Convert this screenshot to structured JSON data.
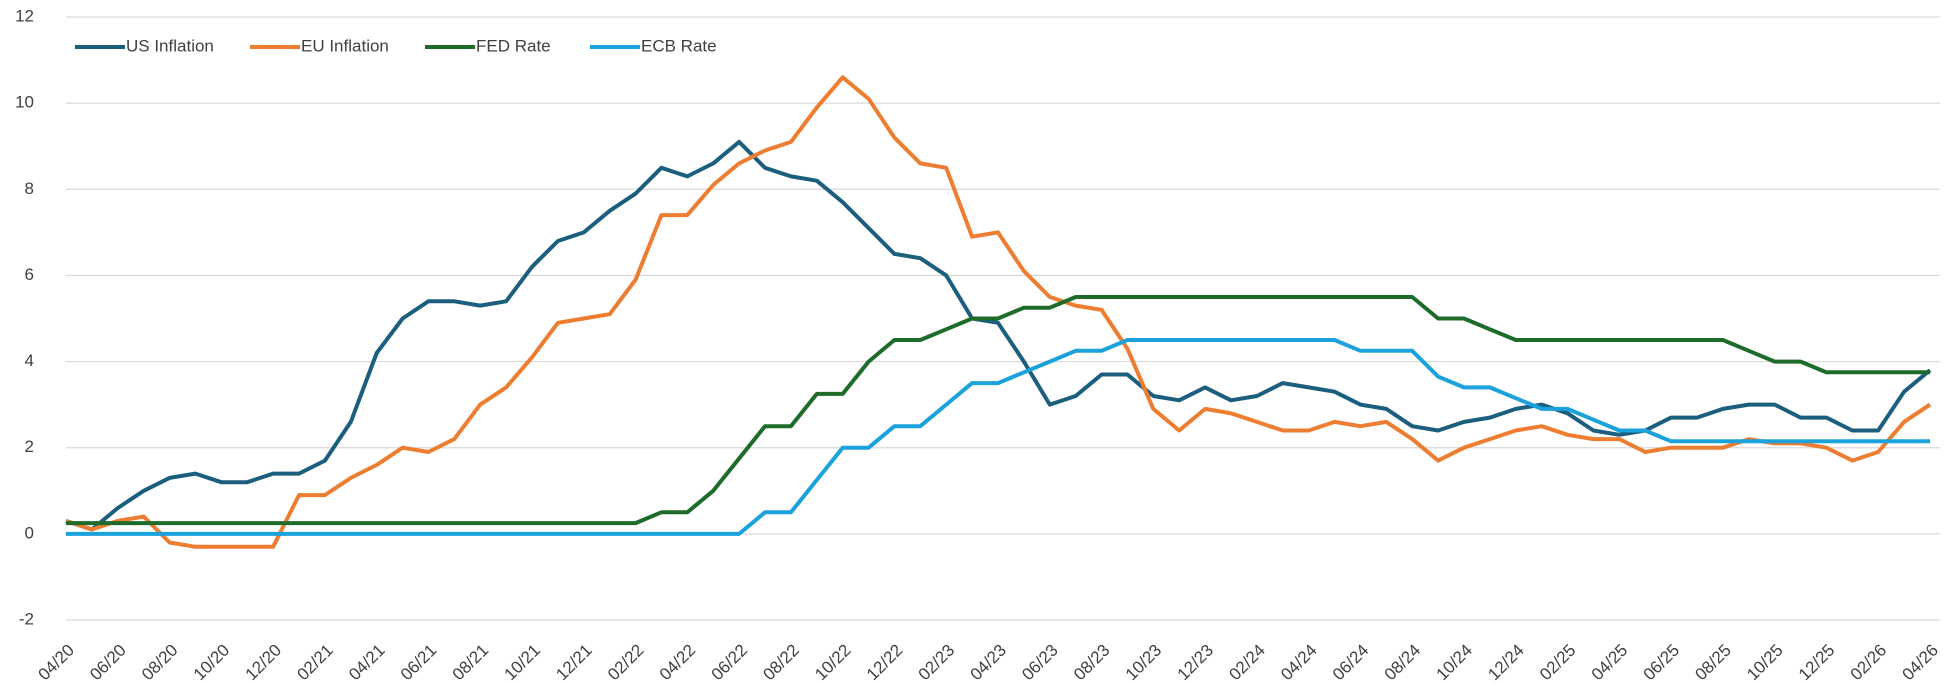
{
  "chart_data": {
    "type": "line",
    "categories": [
      "04/20",
      null,
      "06/20",
      null,
      "08/20",
      null,
      "10/20",
      null,
      "12/20",
      null,
      "02/21",
      null,
      "04/21",
      null,
      "06/21",
      null,
      "08/21",
      null,
      "10/21",
      null,
      "12/21",
      null,
      "02/22",
      null,
      "04/22",
      null,
      "06/22",
      null,
      "08/22",
      null,
      "10/22",
      null,
      "12/22",
      null,
      "02/23",
      null,
      "04/23",
      null,
      "06/23",
      null,
      "08/23",
      null,
      "10/23",
      null,
      "12/23",
      null,
      "02/24",
      null,
      "04/24",
      null,
      "06/24",
      null,
      "08/24",
      null,
      "10/24",
      null,
      "12/24",
      null,
      "02/25",
      null,
      "04/25",
      null,
      "06/25",
      null,
      "08/25",
      null,
      "10/25",
      null,
      "12/25",
      null,
      "02/26",
      null,
      "04/26"
    ],
    "series": [
      {
        "name": "US Inflation",
        "color": "#1b5e7e",
        "values": [
          0.3,
          0.1,
          0.6,
          1.0,
          1.3,
          1.4,
          1.2,
          1.2,
          1.4,
          1.4,
          1.7,
          2.6,
          4.2,
          5.0,
          5.4,
          5.4,
          5.3,
          5.4,
          6.2,
          6.8,
          7.0,
          7.5,
          7.9,
          8.5,
          8.3,
          8.6,
          9.1,
          8.5,
          8.3,
          8.2,
          7.7,
          7.1,
          6.5,
          6.4,
          6.0,
          5.0,
          4.9,
          4.0,
          3.0,
          3.2,
          3.7,
          3.7,
          3.2,
          3.1,
          3.4,
          3.1,
          3.2,
          3.5,
          3.4,
          3.3,
          3.0,
          2.9,
          2.5,
          2.4,
          2.6,
          2.7,
          2.9,
          3.0,
          2.8,
          2.4,
          2.3,
          2.4,
          2.7,
          2.7,
          2.9,
          3.0,
          3.0,
          2.7,
          2.7,
          2.4,
          2.4,
          3.3,
          3.8
        ]
      },
      {
        "name": "EU Inflation",
        "color": "#ed7d31",
        "values": [
          0.3,
          0.1,
          0.3,
          0.4,
          -0.2,
          -0.3,
          -0.3,
          -0.3,
          -0.3,
          0.9,
          0.9,
          1.3,
          1.6,
          2.0,
          1.9,
          2.2,
          3.0,
          3.4,
          4.1,
          4.9,
          5.0,
          5.1,
          5.9,
          7.4,
          7.4,
          8.1,
          8.6,
          8.9,
          9.1,
          9.9,
          10.6,
          10.1,
          9.2,
          8.6,
          8.5,
          6.9,
          7.0,
          6.1,
          5.5,
          5.3,
          5.2,
          4.3,
          2.9,
          2.4,
          2.9,
          2.8,
          2.6,
          2.4,
          2.4,
          2.6,
          2.5,
          2.6,
          2.2,
          1.7,
          2.0,
          2.2,
          2.4,
          2.5,
          2.3,
          2.2,
          2.2,
          1.9,
          2.0,
          2.0,
          2.0,
          2.2,
          2.1,
          2.1,
          2.0,
          1.7,
          1.9,
          2.6,
          3.0
        ]
      },
      {
        "name": "FED Rate",
        "color": "#1e6b2a",
        "values": [
          0.25,
          0.25,
          0.25,
          0.25,
          0.25,
          0.25,
          0.25,
          0.25,
          0.25,
          0.25,
          0.25,
          0.25,
          0.25,
          0.25,
          0.25,
          0.25,
          0.25,
          0.25,
          0.25,
          0.25,
          0.25,
          0.25,
          0.25,
          0.5,
          0.5,
          1.0,
          1.75,
          2.5,
          2.5,
          3.25,
          3.25,
          4.0,
          4.5,
          4.5,
          4.75,
          5.0,
          5.0,
          5.25,
          5.25,
          5.5,
          5.5,
          5.5,
          5.5,
          5.5,
          5.5,
          5.5,
          5.5,
          5.5,
          5.5,
          5.5,
          5.5,
          5.5,
          5.5,
          5.0,
          5.0,
          4.75,
          4.5,
          4.5,
          4.5,
          4.5,
          4.5,
          4.5,
          4.5,
          4.5,
          4.5,
          4.25,
          4.0,
          4.0,
          3.75,
          3.75,
          3.75,
          3.75,
          3.75
        ]
      },
      {
        "name": "ECB Rate",
        "color": "#1ba1dc",
        "values": [
          0,
          0,
          0,
          0,
          0,
          0,
          0,
          0,
          0,
          0,
          0,
          0,
          0,
          0,
          0,
          0,
          0,
          0,
          0,
          0,
          0,
          0,
          0,
          0,
          0,
          0,
          0,
          0.5,
          0.5,
          1.25,
          2.0,
          2.0,
          2.5,
          2.5,
          3.0,
          3.5,
          3.5,
          3.75,
          4.0,
          4.25,
          4.25,
          4.5,
          4.5,
          4.5,
          4.5,
          4.5,
          4.5,
          4.5,
          4.5,
          4.5,
          4.25,
          4.25,
          4.25,
          3.65,
          3.4,
          3.4,
          3.15,
          2.9,
          2.9,
          2.65,
          2.4,
          2.4,
          2.15,
          2.15,
          2.15,
          2.15,
          2.15,
          2.15,
          2.15,
          2.15,
          2.15,
          2.15,
          2.15
        ]
      }
    ],
    "ylim": [
      -2,
      12
    ],
    "yticks": [
      -2,
      0,
      2,
      4,
      6,
      8,
      10,
      12
    ],
    "grid": true,
    "legend": "top-left"
  }
}
